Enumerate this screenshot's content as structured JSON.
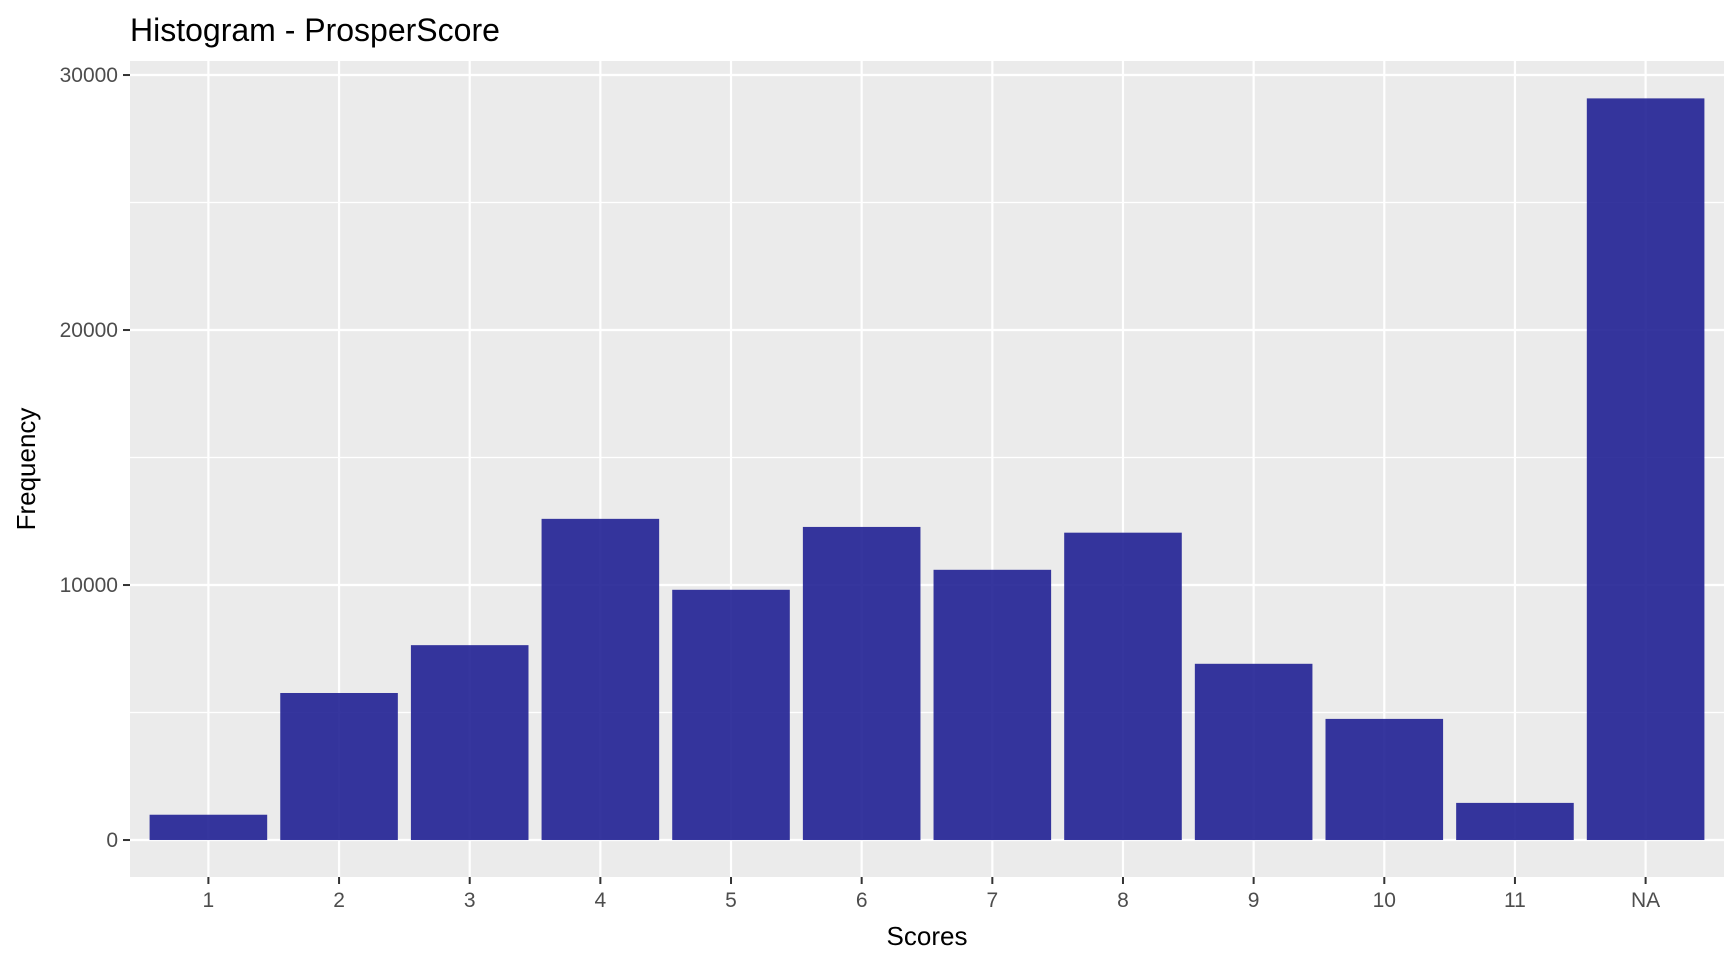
{
  "chart_data": {
    "type": "bar",
    "title": "Histogram - ProsperScore",
    "xlabel": "Scores",
    "ylabel": "Frequency",
    "categories": [
      "1",
      "2",
      "3",
      "4",
      "5",
      "6",
      "7",
      "8",
      "9",
      "10",
      "11",
      "NA"
    ],
    "values": [
      992,
      5766,
      7642,
      12595,
      9813,
      12278,
      10597,
      12053,
      6911,
      4750,
      1456,
      29084
    ],
    "ylim": [
      -1450,
      30550
    ],
    "yticks": [
      0,
      10000,
      20000,
      30000
    ],
    "ytick_labels": [
      "0",
      "10000",
      "20000",
      "30000"
    ],
    "grid": true,
    "colors": {
      "bar": "#1a1a91",
      "panel_background": "#ebebeb",
      "grid_major": "#ffffff",
      "tick_mark": "#333333"
    }
  }
}
